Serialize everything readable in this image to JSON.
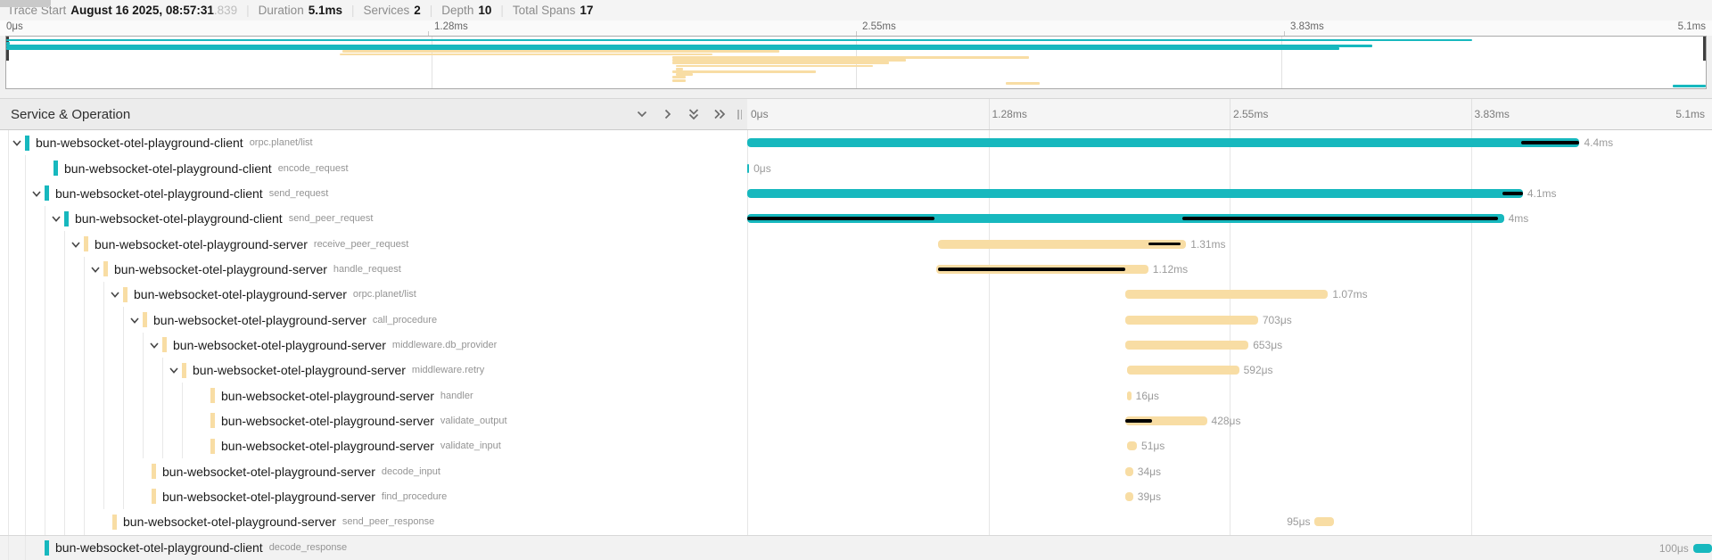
{
  "topbar": {
    "trace_start_label": "Trace Start",
    "trace_start_value": "August 16 2025, 08:57:31",
    "trace_start_fraction": ".839",
    "stats": [
      {
        "label": "Duration",
        "value": "5.1ms"
      },
      {
        "label": "Services",
        "value": "2"
      },
      {
        "label": "Depth",
        "value": "10"
      },
      {
        "label": "Total Spans",
        "value": "17"
      }
    ]
  },
  "axis": {
    "ticks": [
      {
        "label": "0μs",
        "pos": 0
      },
      {
        "label": "1.28ms",
        "pos": 25
      },
      {
        "label": "2.55ms",
        "pos": 50
      },
      {
        "label": "3.83ms",
        "pos": 75
      },
      {
        "label": "5.1ms",
        "pos": 100
      }
    ]
  },
  "table": {
    "title": "Service & Operation"
  },
  "trace": {
    "duration_total_ms": 5.1
  },
  "colors": {
    "client": "#17B8BE",
    "server": "#F8DDA4",
    "event": "#000000"
  },
  "spans": [
    {
      "service": "bun-websocket-otel-playground-client",
      "operation": "orpc.planet/list",
      "depth": 0,
      "parent": true,
      "color": "client",
      "start_ms": 0.0,
      "end_ms": 4.4,
      "duration_label": "4.4ms",
      "label_side": "right",
      "events": [
        [
          4.09,
          4.4
        ]
      ]
    },
    {
      "service": "bun-websocket-otel-playground-client",
      "operation": "encode_request",
      "depth": 1,
      "parent": false,
      "color": "client",
      "start_ms": 0.0,
      "end_ms": 0.01,
      "duration_label": "0μs",
      "label_side": "right",
      "events": []
    },
    {
      "service": "bun-websocket-otel-playground-client",
      "operation": "send_request",
      "depth": 1,
      "parent": true,
      "color": "client",
      "start_ms": 0.0,
      "end_ms": 4.1,
      "duration_label": "4.1ms",
      "label_side": "right",
      "events": [
        [
          3.99,
          4.1
        ]
      ]
    },
    {
      "service": "bun-websocket-otel-playground-client",
      "operation": "send_peer_request",
      "depth": 2,
      "parent": true,
      "color": "client",
      "start_ms": 0.0,
      "end_ms": 4.0,
      "duration_label": "4ms",
      "label_side": "right",
      "events": [
        [
          0.0,
          0.99
        ],
        [
          2.3,
          3.97
        ]
      ]
    },
    {
      "service": "bun-websocket-otel-playground-server",
      "operation": "receive_peer_request",
      "depth": 3,
      "parent": true,
      "color": "server",
      "start_ms": 1.01,
      "end_ms": 2.32,
      "duration_label": "1.31ms",
      "label_side": "right",
      "events": [
        [
          2.12,
          2.29
        ]
      ]
    },
    {
      "service": "bun-websocket-otel-playground-server",
      "operation": "handle_request",
      "depth": 4,
      "parent": true,
      "color": "server",
      "start_ms": 1.0,
      "end_ms": 2.12,
      "duration_label": "1.12ms",
      "label_side": "right",
      "events": [
        [
          1.01,
          2.0
        ]
      ]
    },
    {
      "service": "bun-websocket-otel-playground-server",
      "operation": "orpc.planet/list",
      "depth": 5,
      "parent": true,
      "color": "server",
      "start_ms": 2.0,
      "end_ms": 3.07,
      "duration_label": "1.07ms",
      "label_side": "right",
      "events": []
    },
    {
      "service": "bun-websocket-otel-playground-server",
      "operation": "call_procedure",
      "depth": 6,
      "parent": true,
      "color": "server",
      "start_ms": 2.0,
      "end_ms": 2.7,
      "duration_label": "703μs",
      "label_side": "right",
      "events": []
    },
    {
      "service": "bun-websocket-otel-playground-server",
      "operation": "middleware.db_provider",
      "depth": 7,
      "parent": true,
      "color": "server",
      "start_ms": 2.0,
      "end_ms": 2.65,
      "duration_label": "653μs",
      "label_side": "right",
      "events": []
    },
    {
      "service": "bun-websocket-otel-playground-server",
      "operation": "middleware.retry",
      "depth": 8,
      "parent": true,
      "color": "server",
      "start_ms": 2.01,
      "end_ms": 2.6,
      "duration_label": "592μs",
      "label_side": "right",
      "events": []
    },
    {
      "service": "bun-websocket-otel-playground-server",
      "operation": "handler",
      "depth": 9,
      "parent": false,
      "color": "server",
      "start_ms": 2.01,
      "end_ms": 2.03,
      "duration_label": "16μs",
      "label_side": "right",
      "events": []
    },
    {
      "service": "bun-websocket-otel-playground-server",
      "operation": "validate_output",
      "depth": 9,
      "parent": false,
      "color": "server",
      "start_ms": 2.0,
      "end_ms": 2.43,
      "duration_label": "428μs",
      "label_side": "right",
      "events": [
        [
          2.0,
          2.14
        ]
      ]
    },
    {
      "service": "bun-websocket-otel-playground-server",
      "operation": "validate_input",
      "depth": 9,
      "parent": false,
      "color": "server",
      "start_ms": 2.01,
      "end_ms": 2.06,
      "duration_label": "51μs",
      "label_side": "right",
      "events": []
    },
    {
      "service": "bun-websocket-otel-playground-server",
      "operation": "decode_input",
      "depth": 6,
      "parent": false,
      "color": "server",
      "start_ms": 2.0,
      "end_ms": 2.04,
      "duration_label": "34μs",
      "label_side": "right",
      "events": []
    },
    {
      "service": "bun-websocket-otel-playground-server",
      "operation": "find_procedure",
      "depth": 6,
      "parent": false,
      "color": "server",
      "start_ms": 2.0,
      "end_ms": 2.04,
      "duration_label": "39μs",
      "label_side": "right",
      "events": []
    },
    {
      "service": "bun-websocket-otel-playground-server",
      "operation": "send_peer_response",
      "depth": 4,
      "parent": false,
      "color": "server",
      "start_ms": 3.0,
      "end_ms": 3.1,
      "duration_label": "95μs",
      "label_side": "left",
      "events": []
    },
    {
      "service": "bun-websocket-otel-playground-client",
      "operation": "decode_response",
      "depth": 1,
      "parent": false,
      "color": "client",
      "start_ms": 5.0,
      "end_ms": 5.1,
      "duration_label": "100μs",
      "label_side": "left",
      "events": [],
      "flush": true,
      "highlight": true
    }
  ]
}
